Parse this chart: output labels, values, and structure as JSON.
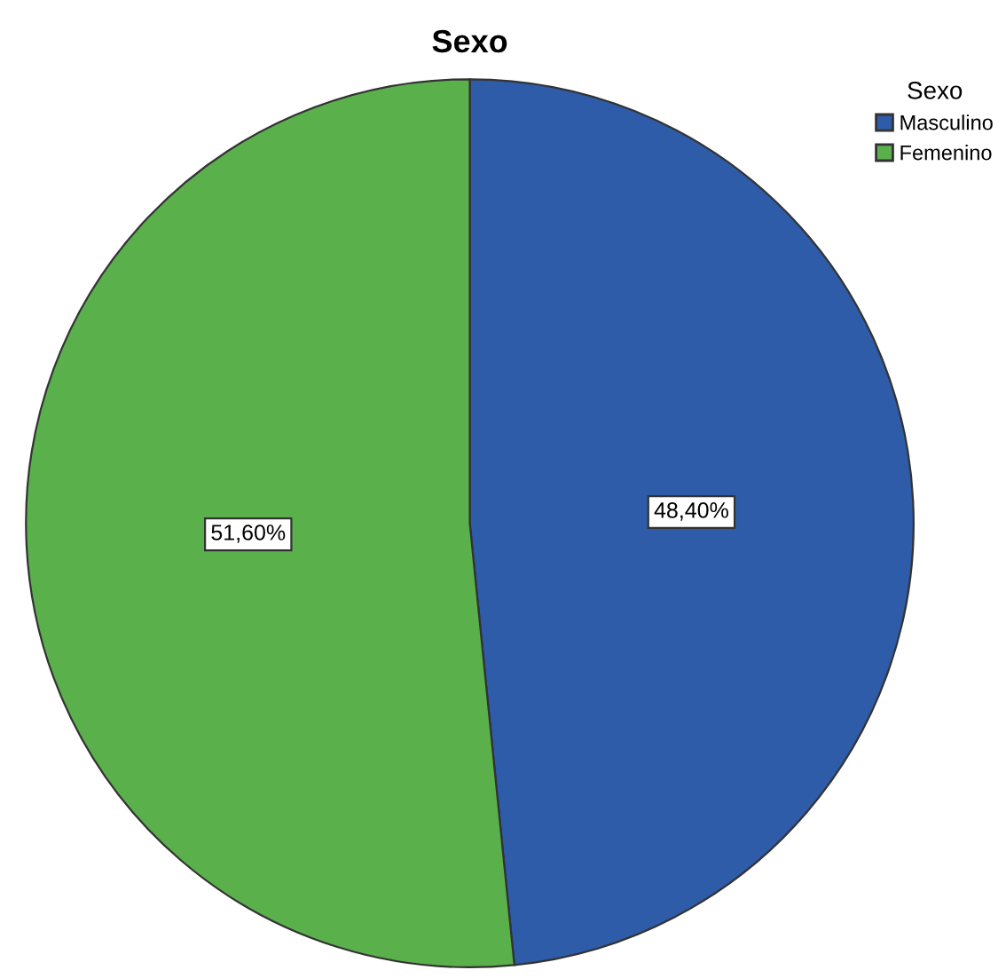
{
  "chart_data": {
    "type": "pie",
    "title": "Sexo",
    "legend_title": "Sexo",
    "legend": "top right",
    "categories": [
      "Masculino",
      "Femenino"
    ],
    "values": [
      48.4,
      51.6
    ],
    "colors": [
      "#2e5ca8",
      "#5ab14c"
    ],
    "value_labels": [
      "48,40%",
      "51,60%"
    ]
  }
}
